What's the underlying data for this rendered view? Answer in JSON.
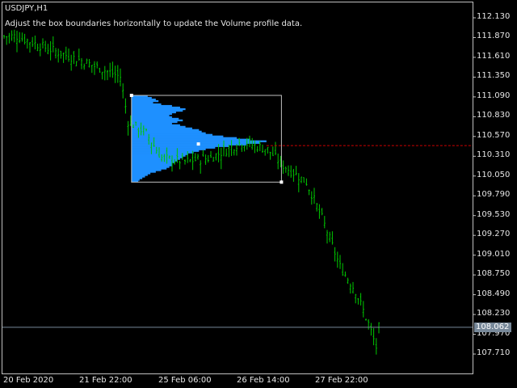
{
  "symbol_label": "USDJPY,H1",
  "hint": "Adjust the box boundaries horizontally to update the Volume profile data.",
  "colors": {
    "candle": "#00c800",
    "profile": "#1e90ff",
    "box": "#c0c0c0",
    "poc_line": "#d00000",
    "bid_line": "#778899",
    "axis": "#c0c0c0"
  },
  "price_axis": [
    "112.130",
    "111.870",
    "111.610",
    "111.350",
    "111.090",
    "110.830",
    "110.570",
    "110.310",
    "110.050",
    "109.790",
    "109.530",
    "109.270",
    "109.010",
    "108.750",
    "108.490",
    "108.230",
    "107.970",
    "107.710"
  ],
  "time_axis": [
    "20 Feb 2020",
    "21 Feb 22:00",
    "25 Feb 06:00",
    "26 Feb 14:00",
    "27 Feb 22:00"
  ],
  "bid_price": "108.062",
  "poc_price": 110.45,
  "price_path": [
    [
      0,
      111.886
    ],
    [
      5,
      111.886
    ],
    [
      17,
      111.726
    ],
    [
      30,
      111.567
    ],
    [
      45,
      111.354
    ],
    [
      48,
      110.77
    ],
    [
      55,
      110.61
    ],
    [
      61,
      110.29
    ],
    [
      70,
      110.24
    ],
    [
      80,
      110.29
    ],
    [
      92,
      110.5
    ],
    [
      102,
      110.4
    ],
    [
      108,
      110.19
    ],
    [
      117,
      109.97
    ],
    [
      123,
      109.5
    ],
    [
      130,
      108.86
    ],
    [
      136,
      108.54
    ],
    [
      141,
      108.11
    ],
    [
      144,
      107.8
    ],
    [
      145,
      108.06
    ]
  ],
  "volume_box": {
    "from_bar": 49,
    "to_bar": 107,
    "high": 111.11,
    "low": 109.97
  },
  "volume_profile": [
    0.12,
    0.15,
    0.18,
    0.2,
    0.16,
    0.22,
    0.3,
    0.36,
    0.4,
    0.38,
    0.33,
    0.3,
    0.28,
    0.3,
    0.35,
    0.38,
    0.34,
    0.3,
    0.36,
    0.4,
    0.45,
    0.5,
    0.52,
    0.55,
    0.6,
    0.68,
    0.78,
    0.88,
    1.0,
    0.95,
    0.85,
    0.72,
    0.62,
    0.55,
    0.5,
    0.46,
    0.42,
    0.4,
    0.38,
    0.36,
    0.34,
    0.32,
    0.3,
    0.3,
    0.28,
    0.26,
    0.22,
    0.18,
    0.14,
    0.12,
    0.1,
    0.08,
    0.06,
    0.05
  ]
}
